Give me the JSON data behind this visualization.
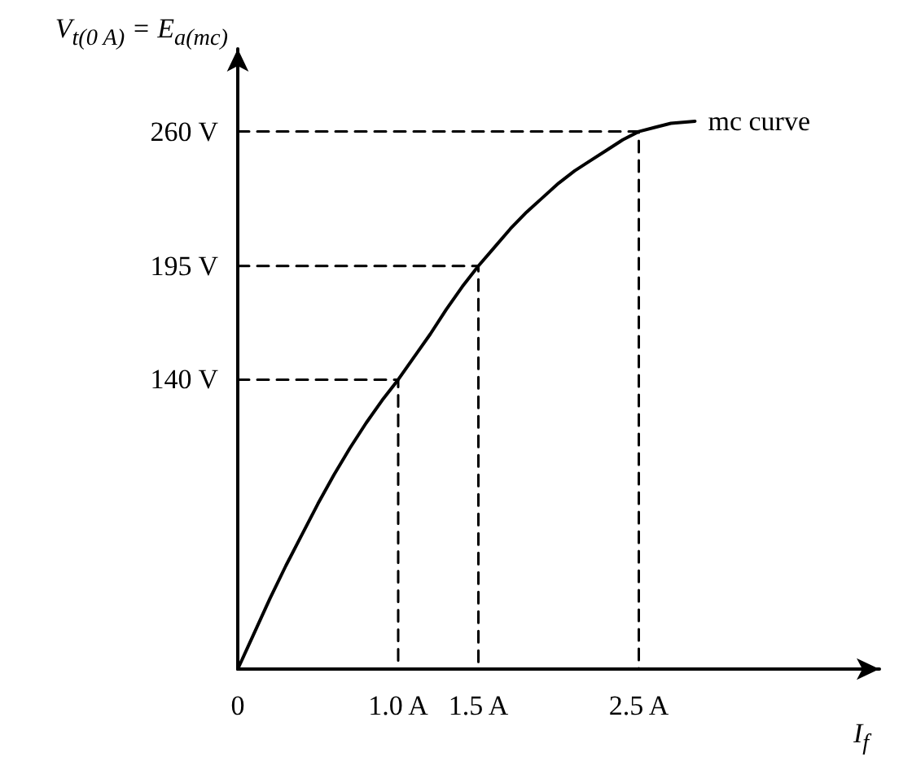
{
  "chart_data": {
    "type": "line",
    "xlabel": "I$_{f}$",
    "ylabel": "V$_{t(0 A)}$ = E$_{a(mc)}$",
    "xlim": [
      0,
      4
    ],
    "ylim": [
      0,
      300
    ],
    "xticks": [
      0,
      {
        "value": 1,
        "label": "1.0 A"
      },
      {
        "value": 1.5,
        "label": "1.5 A"
      },
      {
        "value": 2.5,
        "label": "2.5 A"
      }
    ],
    "yticks": [
      {
        "value": 140,
        "label": "140 V"
      },
      {
        "value": 195,
        "label": "195 V"
      },
      {
        "value": 260,
        "label": "260 V"
      }
    ],
    "series": [
      {
        "color": "#000000",
        "line_style": "solid",
        "x": [
          0,
          0.1,
          0.2,
          0.3,
          0.4,
          0.5,
          0.6,
          0.7,
          0.8,
          0.9,
          1.0,
          1.1,
          1.2,
          1.3,
          1.4,
          1.5,
          1.6,
          1.7,
          1.8,
          1.9,
          2.0,
          2.1,
          2.2,
          2.3,
          2.4,
          2.5,
          2.6,
          2.7,
          2.85
        ],
        "values": [
          0,
          17,
          34,
          50,
          65,
          80,
          94,
          107,
          119,
          130,
          140,
          151,
          162,
          174,
          185,
          195,
          204,
          213,
          221,
          228,
          235,
          241,
          246,
          251,
          256,
          260,
          262,
          264,
          265
        ]
      },
      {
        "color": "#000000",
        "line_style": "dashed",
        "x": [
          0,
          1.0,
          1.0
        ],
        "values": [
          140,
          140,
          0
        ]
      },
      {
        "color": "#000000",
        "line_style": "dashed",
        "x": [
          0,
          1.5,
          1.5
        ],
        "values": [
          195,
          195,
          0
        ]
      },
      {
        "color": "#000000",
        "line_style": "dashed",
        "x": [
          0,
          2.5,
          2.5
        ],
        "values": [
          260,
          260,
          0
        ]
      }
    ],
    "annotations": [
      {
        "text": "mc curve",
        "x": 2.85,
        "y": 265
      }
    ],
    "grid": false,
    "marker": "none"
  }
}
